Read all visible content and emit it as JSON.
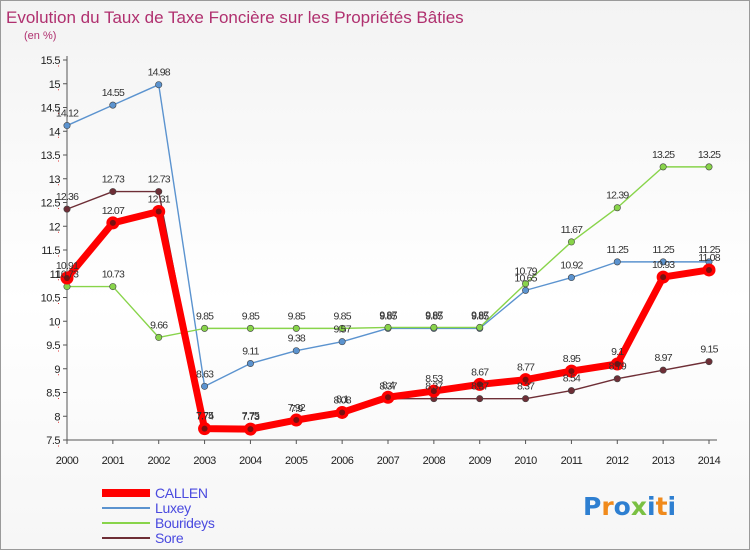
{
  "chart_data": {
    "type": "line",
    "title": "Evolution du Taux de Taxe Foncière sur les Propriétés Bâties",
    "subtitle": "(en %)",
    "x": [
      "2000",
      "2001",
      "2002",
      "2003",
      "2004",
      "2005",
      "2006",
      "2007",
      "2008",
      "2009",
      "2010",
      "2011",
      "2012",
      "2013",
      "2014"
    ],
    "ylim": [
      7.5,
      15.5
    ],
    "yticks": [
      "7.5",
      "8",
      "8.5",
      "9",
      "9.5",
      "10",
      "10.5",
      "11",
      "11.5",
      "12",
      "12.5",
      "13",
      "13.5",
      "14",
      "14.5",
      "15",
      "15.5"
    ],
    "grid": false,
    "legend_position": "bottom-left",
    "series": [
      {
        "name": "CALLEN",
        "color": "#ff0000",
        "values": [
          10.91,
          12.07,
          12.31,
          7.74,
          7.73,
          7.92,
          8.08,
          8.4,
          8.53,
          8.67,
          8.77,
          8.95,
          9.1,
          10.93,
          11.08
        ],
        "labels": [
          "10.91",
          "12.07",
          "12.31",
          "7.74",
          "7.73",
          "7.92",
          "8.08",
          "8.4",
          "8.53",
          "8.67",
          "8.77",
          "8.95",
          "9.1",
          "10.93",
          "11.08"
        ]
      },
      {
        "name": "Luxey",
        "color": "#5b93cf",
        "values": [
          14.12,
          14.55,
          14.98,
          8.63,
          9.11,
          9.38,
          9.57,
          9.85,
          9.85,
          9.85,
          10.65,
          10.92,
          11.25,
          11.25,
          11.25
        ],
        "labels": [
          "14.12",
          "14.55",
          "14.98",
          "8.63",
          "9.11",
          "9.38",
          "9.57",
          "9.85",
          "9.85",
          "9.85",
          "10.65",
          "10.92",
          "11.25",
          "11.25",
          "11.25"
        ]
      },
      {
        "name": "Bourideys",
        "color": "#88d44a",
        "values": [
          10.73,
          10.73,
          9.66,
          9.85,
          9.85,
          9.85,
          9.85,
          9.87,
          9.87,
          9.87,
          10.79,
          11.67,
          12.39,
          13.25,
          13.25
        ],
        "labels": [
          "10.73",
          "10.73",
          "9.66",
          "9.85",
          "9.85",
          "9.85",
          "9.85",
          "9.87",
          "9.87",
          "9.87",
          "10.79",
          "11.67",
          "12.39",
          "13.25",
          "13.25"
        ]
      },
      {
        "name": "Sore",
        "color": "#6e2e36",
        "values": [
          12.36,
          12.73,
          12.73,
          7.75,
          7.75,
          7.9,
          8.1,
          8.37,
          8.37,
          8.37,
          8.37,
          8.54,
          8.79,
          8.97,
          9.15
        ],
        "labels": [
          "12.36",
          "12.73",
          "12.73",
          "7.75",
          "7.75",
          "7.9",
          "8.1",
          "8.37",
          "8.37",
          "8.37",
          "8.37",
          "8.54",
          "8.79",
          "8.97",
          "9.15"
        ]
      }
    ]
  },
  "logo": {
    "text": "Proxiti",
    "colors": [
      "#2e7fd1",
      "#f08a1c",
      "#2e7fd1",
      "#7ac043",
      "#2e7fd1",
      "#f08a1c",
      "#2e7fd1"
    ]
  }
}
